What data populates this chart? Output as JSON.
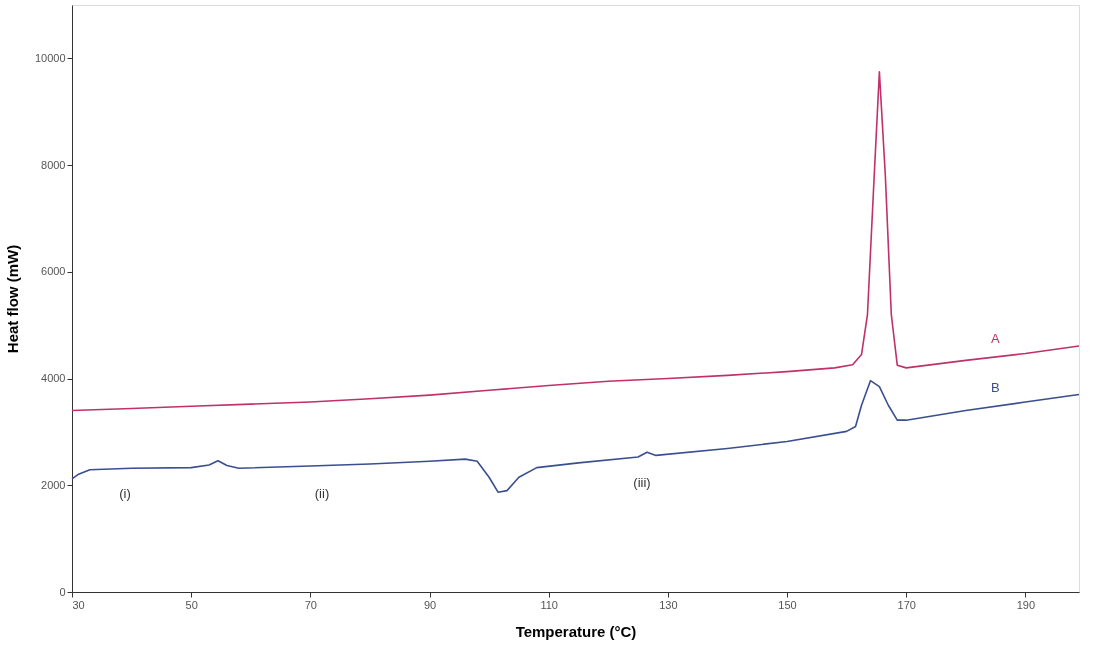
{
  "chart_data": {
    "type": "line",
    "xlabel": "Temperature (°C)",
    "ylabel": "Heat flow (mW)",
    "xlim": [
      30,
      199
    ],
    "xticks": [
      30,
      50,
      70,
      90,
      110,
      130,
      150,
      170,
      190
    ],
    "ylim": [
      0,
      11000
    ],
    "yticks": [
      0,
      2000,
      4000,
      6000,
      8000,
      10000
    ],
    "grid": false,
    "legend": false,
    "marker": "none",
    "line_style": "solid",
    "series": [
      {
        "name": "A",
        "color": "#c0306a",
        "x": [
          30,
          40,
          50,
          60,
          70,
          80,
          90,
          100,
          110,
          120,
          130,
          140,
          150,
          158,
          161,
          162.5,
          163.5,
          164.5,
          165.5,
          166.5,
          167.5,
          168.5,
          170,
          180,
          190,
          199
        ],
        "values": [
          3400,
          3440,
          3480,
          3520,
          3560,
          3620,
          3690,
          3780,
          3870,
          3950,
          4000,
          4060,
          4130,
          4200,
          4260,
          4450,
          5200,
          7500,
          9750,
          7800,
          5200,
          4250,
          4200,
          4340,
          4470,
          4610
        ]
      },
      {
        "name": "B",
        "color": "#3a4f8f",
        "x": [
          30,
          31,
          33,
          40,
          50,
          53,
          54.5,
          56,
          58,
          70,
          80,
          90,
          96,
          98,
          100,
          101.5,
          103,
          105,
          108,
          115,
          125,
          126.5,
          128,
          140,
          150,
          160,
          161.5,
          162.5,
          164,
          165.5,
          167,
          168.5,
          170,
          180,
          190,
          199
        ],
        "values": [
          2120,
          2200,
          2290,
          2320,
          2330,
          2380,
          2460,
          2370,
          2320,
          2360,
          2400,
          2450,
          2490,
          2450,
          2150,
          1870,
          1900,
          2150,
          2330,
          2420,
          2530,
          2620,
          2560,
          2690,
          2820,
          3010,
          3100,
          3500,
          3960,
          3850,
          3500,
          3220,
          3220,
          3400,
          3560,
          3700
        ]
      }
    ],
    "annotations": [
      "(i)",
      "(ii)",
      "(iii)"
    ]
  }
}
